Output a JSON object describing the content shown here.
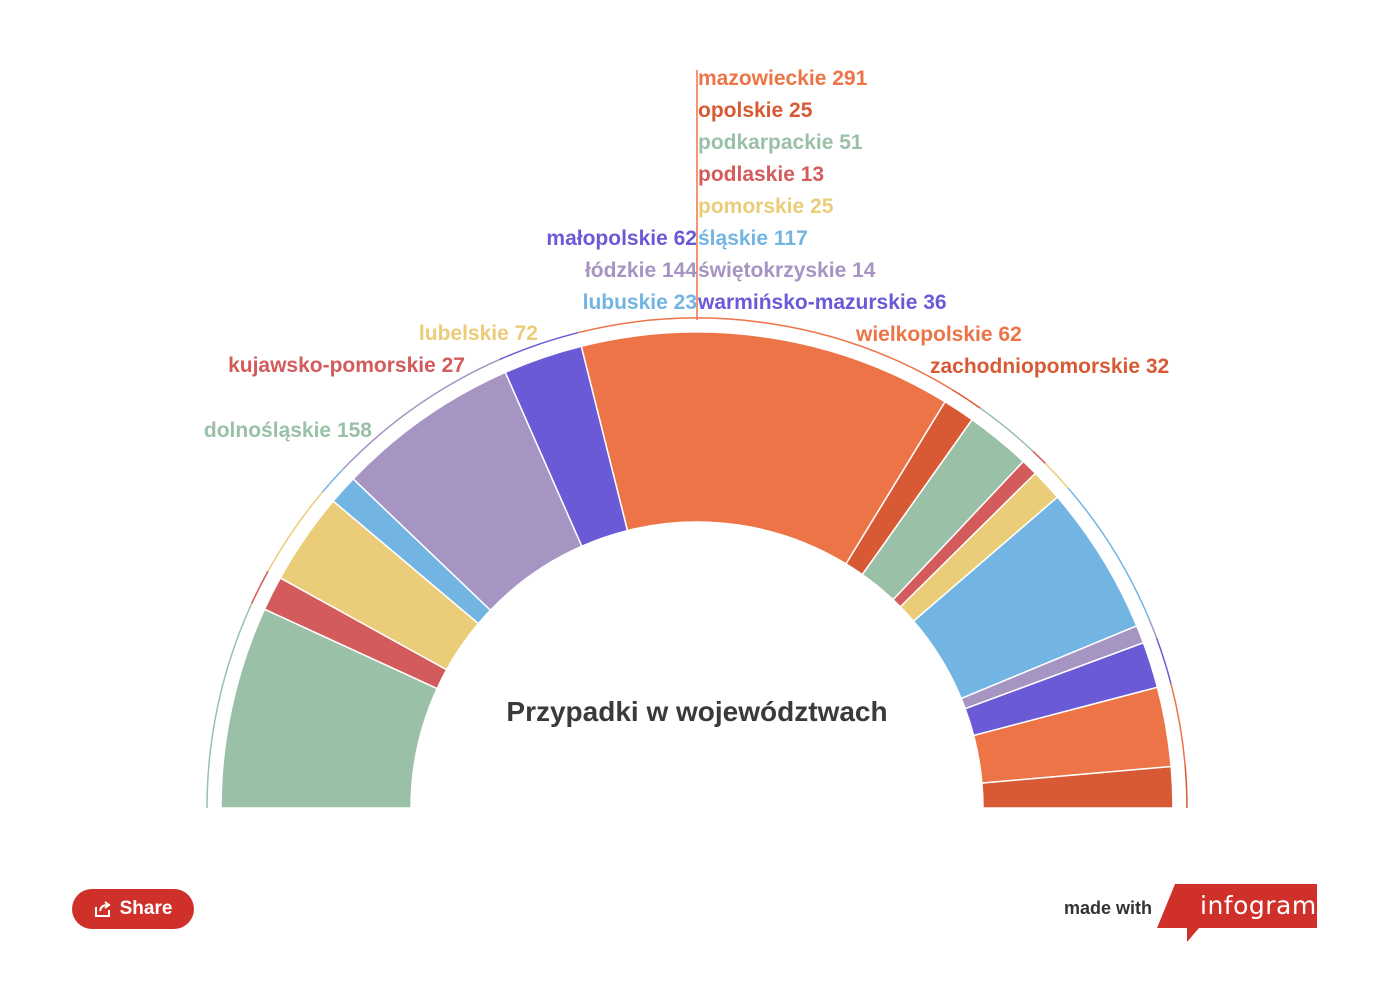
{
  "chart_data": {
    "type": "pie",
    "variant": "semicircle-donut",
    "title": "Przypadki w województwach",
    "slices": [
      {
        "name": "dolnośląskie",
        "value": 158,
        "color": "#9bc0a8"
      },
      {
        "name": "kujawsko-pomorskie",
        "value": 27,
        "color": "#d35b5b"
      },
      {
        "name": "lubelskie",
        "value": 72,
        "color": "#ebcd79"
      },
      {
        "name": "lubuskie",
        "value": 23,
        "color": "#73b5e2"
      },
      {
        "name": "łódzkie",
        "value": 144,
        "color": "#a694c2"
      },
      {
        "name": "małopolskie",
        "value": 62,
        "color": "#6a5ad5"
      },
      {
        "name": "mazowieckie",
        "value": 291,
        "color": "#ed7446"
      },
      {
        "name": "opolskie",
        "value": 25,
        "color": "#d85a34"
      },
      {
        "name": "podkarpackie",
        "value": 51,
        "color": "#9bc0a8"
      },
      {
        "name": "podlaskie",
        "value": 13,
        "color": "#d35b5b"
      },
      {
        "name": "pomorskie",
        "value": 25,
        "color": "#ebcd79"
      },
      {
        "name": "śląskie",
        "value": 117,
        "color": "#73b5e2"
      },
      {
        "name": "świętokrzyskie",
        "value": 14,
        "color": "#a694c2"
      },
      {
        "name": "warmińsko-mazurskie",
        "value": 36,
        "color": "#6a5ad5"
      },
      {
        "name": "wielkopolskie",
        "value": 62,
        "color": "#ed7446"
      },
      {
        "name": "zachodniopomorskie",
        "value": 32,
        "color": "#d85a34"
      }
    ]
  },
  "share": {
    "label": "Share"
  },
  "branding": {
    "made_with": "made with",
    "logo_text": "infogram",
    "logo_color": "#d0302a"
  }
}
